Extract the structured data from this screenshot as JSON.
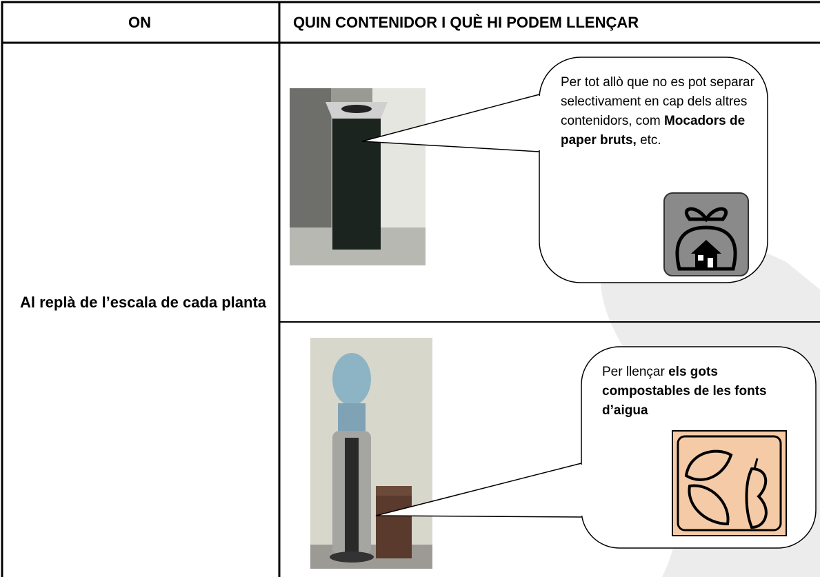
{
  "header": {
    "col1": "ON",
    "col2": "QUIN CONTENIDOR I QUÈ HI PODEM LLENÇAR"
  },
  "location": "Al replà de l’escala de cada planta",
  "callouts": [
    {
      "parts": [
        "Per tot allò que no es pot separar selectivament en cap dels altres contenidors, com ",
        "Mocadors de paper bruts,",
        " etc."
      ]
    },
    {
      "parts": [
        "Per llençar  ",
        "els gots compostables de les fonts d’aigua"
      ]
    }
  ]
}
